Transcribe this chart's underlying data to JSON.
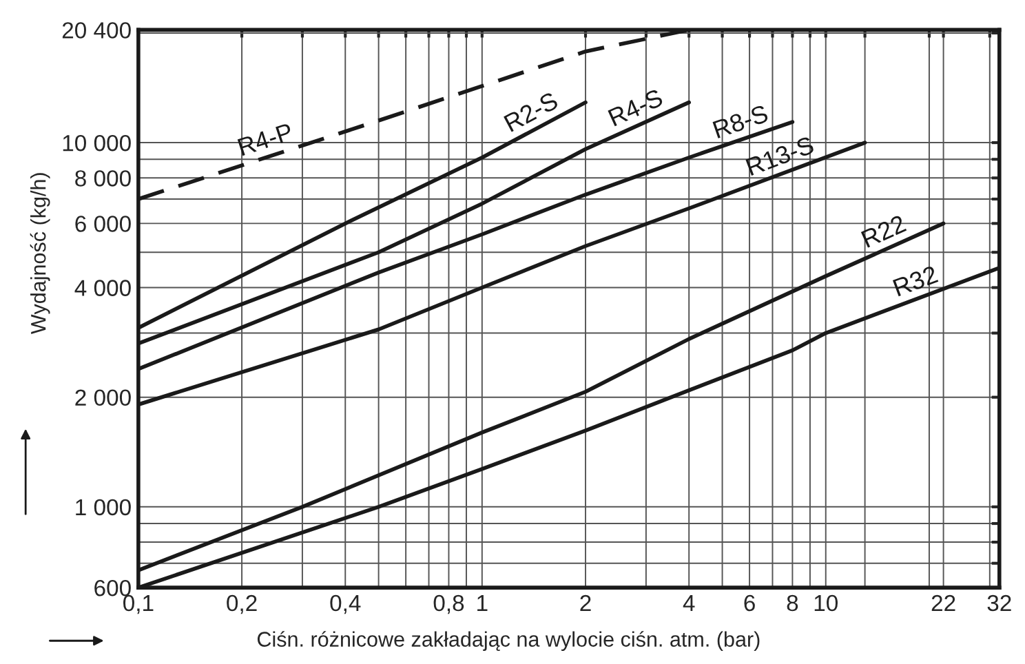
{
  "chart_data": {
    "type": "line",
    "xlabel": "Ciśn. różnicowe zakładając na wylocie ciśn. atm. (bar)",
    "ylabel": "Wydajność (kg/h)",
    "log": "xy",
    "grid": true,
    "legend": "top right",
    "marker": "none",
    "line_style": "solid",
    "xlim": [
      0.1,
      32
    ],
    "ylim": [
      600,
      20400
    ],
    "xticks": [
      {
        "value": 0.1,
        "label": "0,1"
      },
      {
        "value": 0.2,
        "label": "0,2"
      },
      {
        "value": 0.3,
        "label": null
      },
      {
        "value": 0.4,
        "label": "0,4"
      },
      {
        "value": 0.5,
        "label": null
      },
      {
        "value": 0.6,
        "label": null
      },
      {
        "value": 0.7,
        "label": null
      },
      {
        "value": 0.8,
        "label": "0,8"
      },
      {
        "value": 0.9,
        "label": null
      },
      1,
      2,
      {
        "value": 3,
        "label": null
      },
      4,
      {
        "value": 5,
        "label": null
      },
      6,
      {
        "value": 7,
        "label": null
      },
      8,
      {
        "value": 9,
        "label": null
      },
      10,
      {
        "value": 13,
        "label": null
      },
      {
        "value": 20,
        "label": null
      },
      22,
      {
        "value": 30,
        "label": null
      },
      32
    ],
    "yticks": [
      {
        "value": 600,
        "label": "600"
      },
      {
        "value": 700,
        "label": null
      },
      {
        "value": 800,
        "label": null
      },
      {
        "value": 900,
        "label": null
      },
      {
        "value": 1000,
        "label": "1 000"
      },
      {
        "value": 2000,
        "label": "2 000"
      },
      {
        "value": 3000,
        "label": null
      },
      {
        "value": 4000,
        "label": "4 000"
      },
      {
        "value": 5000,
        "label": null
      },
      {
        "value": 6000,
        "label": "6 000"
      },
      {
        "value": 7000,
        "label": null
      },
      {
        "value": 8000,
        "label": "8 000"
      },
      {
        "value": 9000,
        "label": null
      },
      {
        "value": 10000,
        "label": "10 000"
      },
      {
        "value": 20000,
        "label": null
      },
      {
        "value": 20400,
        "label": "20 400"
      }
    ],
    "series": [
      {
        "name": "R4-P",
        "color": "#1a1a1a",
        "line_style": "dashed",
        "x": [
          0.1,
          0.2,
          0.5,
          1,
          2,
          4
        ],
        "values": [
          7000,
          8660,
          11500,
          14300,
          17800,
          20400
        ]
      },
      {
        "name": "R2-S",
        "color": "#1a1a1a",
        "x": [
          0.1,
          0.4,
          1,
          2
        ],
        "values": [
          3100,
          6000,
          9100,
          12900
        ]
      },
      {
        "name": "R4-S",
        "color": "#1a1a1a",
        "x": [
          0.1,
          0.5,
          1,
          2,
          4
        ],
        "values": [
          2810,
          5000,
          6800,
          9600,
          12900
        ]
      },
      {
        "name": "R8-S",
        "color": "#1a1a1a",
        "x": [
          0.1,
          0.5,
          1,
          2,
          4,
          8
        ],
        "values": [
          2390,
          4400,
          5600,
          7200,
          9100,
          11400
        ]
      },
      {
        "name": "R13-S",
        "color": "#1a1a1a",
        "x": [
          0.1,
          0.5,
          1,
          2,
          4,
          13
        ],
        "values": [
          1910,
          3070,
          4000,
          5200,
          6600,
          10000
        ]
      },
      {
        "name": "R22",
        "color": "#1a1a1a",
        "x": [
          0.1,
          0.3,
          1,
          2,
          4,
          10,
          22
        ],
        "values": [
          670,
          1000,
          1600,
          2070,
          2890,
          4300,
          6000
        ]
      },
      {
        "name": "R32",
        "color": "#1a1a1a",
        "x": [
          0.1,
          0.5,
          1,
          2,
          4,
          8,
          10,
          32
        ],
        "values": [
          600,
          1000,
          1270,
          1620,
          2090,
          2690,
          3000,
          4530
        ]
      }
    ]
  }
}
